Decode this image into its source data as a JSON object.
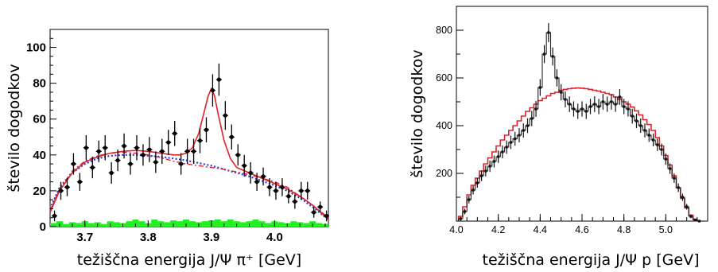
{
  "chart_data": [
    {
      "type": "scatter",
      "title": "",
      "xlabel": "težiščna energija J/Ψ π⁺ [GeV]",
      "ylabel": "število dogodkov",
      "xlim": [
        3.645,
        4.085
      ],
      "ylim": [
        0,
        110
      ],
      "xticks": [
        3.7,
        3.8,
        3.9,
        4.0
      ],
      "xtick_labels": [
        "3.7",
        "3.8",
        "3.9",
        "4.0"
      ],
      "yticks": [
        0,
        20,
        40,
        60,
        80,
        100
      ],
      "ytick_labels": [
        "0",
        "20",
        "40",
        "60",
        "80",
        "100"
      ],
      "grid": false,
      "series": [
        {
          "kind": "points_with_errors",
          "x": [
            3.652,
            3.662,
            3.672,
            3.682,
            3.692,
            3.702,
            3.712,
            3.722,
            3.732,
            3.742,
            3.752,
            3.762,
            3.772,
            3.782,
            3.792,
            3.802,
            3.812,
            3.822,
            3.832,
            3.842,
            3.852,
            3.862,
            3.872,
            3.882,
            3.892,
            3.902,
            3.912,
            3.922,
            3.932,
            3.942,
            3.952,
            3.962,
            3.972,
            3.982,
            3.992,
            4.002,
            4.012,
            4.022,
            4.032,
            4.042,
            4.052,
            4.062,
            4.072,
            4.082
          ],
          "y": [
            6,
            20,
            22,
            35,
            25,
            44,
            33,
            42,
            44,
            30,
            37,
            45,
            35,
            44,
            40,
            43,
            36,
            42,
            47,
            52,
            35,
            42,
            42,
            48,
            54,
            76,
            82,
            62,
            50,
            40,
            34,
            30,
            25,
            28,
            22,
            20,
            22,
            17,
            14,
            20,
            20,
            8,
            11,
            6
          ],
          "yerr": [
            3,
            5,
            5,
            6,
            5,
            7,
            6,
            6,
            7,
            6,
            6,
            7,
            6,
            7,
            6,
            7,
            6,
            7,
            7,
            7,
            6,
            7,
            7,
            7,
            7,
            9,
            9,
            8,
            7,
            6,
            6,
            6,
            5,
            5,
            5,
            5,
            5,
            4,
            4,
            5,
            5,
            3,
            3,
            3
          ]
        },
        {
          "kind": "fit_total",
          "color": "#e0202a",
          "x": [
            3.645,
            3.66,
            3.68,
            3.7,
            3.72,
            3.74,
            3.76,
            3.78,
            3.8,
            3.82,
            3.84,
            3.85,
            3.86,
            3.87,
            3.88,
            3.89,
            3.895,
            3.9,
            3.905,
            3.91,
            3.92,
            3.93,
            3.94,
            3.96,
            3.98,
            4.0,
            4.02,
            4.04,
            4.06,
            4.085
          ],
          "y": [
            8,
            20,
            30,
            36,
            39,
            41,
            42,
            42.5,
            42,
            41,
            40,
            40,
            41,
            44,
            52,
            66,
            73,
            77,
            73,
            64,
            48,
            38,
            33,
            30,
            27,
            24,
            21,
            17,
            12,
            4
          ]
        },
        {
          "kind": "background_blue_dotted",
          "color": "#2a3bd4",
          "x": [
            3.645,
            3.66,
            3.68,
            3.7,
            3.72,
            3.74,
            3.76,
            3.78,
            3.8,
            3.82,
            3.84,
            3.86,
            3.88,
            3.9,
            3.92,
            3.94,
            3.96,
            3.98,
            4.0,
            4.02,
            4.04,
            4.06,
            4.085
          ],
          "y": [
            10,
            22,
            30,
            35,
            38,
            39.5,
            40,
            40,
            39.5,
            39,
            38,
            37,
            35.5,
            34,
            32,
            30,
            28,
            25.5,
            23,
            20,
            16,
            11,
            4
          ]
        },
        {
          "kind": "background_red_dashed",
          "color": "#e0202a",
          "x": [
            3.645,
            3.66,
            3.68,
            3.7,
            3.72,
            3.74,
            3.76,
            3.78,
            3.8,
            3.82,
            3.84,
            3.86,
            3.88,
            3.9,
            3.92,
            3.94,
            3.96,
            3.98,
            4.0,
            4.02,
            4.04,
            4.06,
            4.085
          ],
          "y": [
            9,
            21,
            31,
            36.5,
            39.5,
            41,
            41.5,
            41,
            40,
            38.5,
            36.5,
            35,
            34,
            33,
            32,
            30.5,
            29,
            27,
            25,
            22,
            17,
            12,
            5
          ]
        },
        {
          "kind": "green_histogram",
          "color": "#22ee22",
          "x": [
            3.645,
            3.655,
            3.665,
            3.675,
            3.685,
            3.695,
            3.705,
            3.715,
            3.725,
            3.735,
            3.745,
            3.755,
            3.765,
            3.775,
            3.785,
            3.795,
            3.805,
            3.815,
            3.825,
            3.835,
            3.845,
            3.855,
            3.865,
            3.875,
            3.885,
            3.895,
            3.905,
            3.915,
            3.925,
            3.935,
            3.945,
            3.955,
            3.965,
            3.975,
            3.985,
            3.995,
            4.005,
            4.015,
            4.025,
            4.035,
            4.045,
            4.055,
            4.065,
            4.075
          ],
          "y": [
            2,
            3,
            1.5,
            2.5,
            2,
            3,
            2,
            2.5,
            1.5,
            3,
            2.5,
            2,
            3,
            4,
            3,
            2,
            4,
            3,
            2.5,
            3.5,
            3,
            4,
            3,
            2.5,
            3,
            3.5,
            4,
            3,
            4,
            3,
            2.5,
            3,
            4,
            3,
            2,
            3,
            2.5,
            2,
            3,
            2.5,
            2,
            3,
            2,
            1.5
          ]
        }
      ]
    },
    {
      "type": "line",
      "title": "",
      "xlabel": "težiščna energija J/Ψ p  [GeV]",
      "ylabel": "število dogodkov",
      "xlim": [
        4.0,
        5.2
      ],
      "ylim": [
        0,
        900
      ],
      "xticks": [
        4.0,
        4.2,
        4.4,
        4.6,
        4.8,
        5.0
      ],
      "xtick_labels": [
        "4.0",
        "4.2",
        "4.4",
        "4.6",
        "4.8",
        "5.0"
      ],
      "yticks": [
        200,
        400,
        600,
        800
      ],
      "ytick_labels": [
        "200",
        "400",
        "600",
        "800"
      ],
      "grid": false,
      "series": [
        {
          "kind": "data_histogram",
          "color": "#222222",
          "x": [
            4.02,
            4.04,
            4.06,
            4.08,
            4.1,
            4.12,
            4.14,
            4.16,
            4.18,
            4.2,
            4.22,
            4.24,
            4.26,
            4.28,
            4.3,
            4.32,
            4.34,
            4.36,
            4.38,
            4.4,
            4.42,
            4.44,
            4.46,
            4.48,
            4.5,
            4.52,
            4.54,
            4.56,
            4.58,
            4.6,
            4.62,
            4.64,
            4.66,
            4.68,
            4.7,
            4.72,
            4.74,
            4.76,
            4.78,
            4.8,
            4.82,
            4.84,
            4.86,
            4.88,
            4.9,
            4.92,
            4.94,
            4.96,
            4.98,
            5.0,
            5.02,
            5.04,
            5.06,
            5.08,
            5.1,
            5.12,
            5.14,
            5.16
          ],
          "y": [
            10,
            40,
            90,
            130,
            160,
            190,
            210,
            230,
            250,
            270,
            290,
            310,
            330,
            345,
            360,
            380,
            400,
            430,
            470,
            560,
            700,
            790,
            690,
            600,
            540,
            510,
            490,
            470,
            460,
            470,
            460,
            480,
            490,
            480,
            500,
            490,
            500,
            490,
            520,
            480,
            470,
            440,
            420,
            400,
            380,
            360,
            340,
            320,
            300,
            260,
            220,
            180,
            140,
            100,
            60,
            20,
            5,
            0
          ],
          "yerr": [
            8,
            12,
            16,
            18,
            20,
            22,
            23,
            24,
            25,
            26,
            27,
            28,
            28,
            29,
            30,
            30,
            31,
            32,
            33,
            35,
            38,
            40,
            38,
            36,
            34,
            33,
            33,
            32,
            32,
            32,
            32,
            32,
            33,
            32,
            33,
            32,
            33,
            32,
            33,
            32,
            32,
            31,
            30,
            30,
            29,
            28,
            27,
            26,
            25,
            24,
            22,
            20,
            18,
            15,
            12,
            8,
            5,
            3
          ]
        },
        {
          "kind": "model_histogram",
          "color": "#e0202a",
          "x": [
            4.02,
            4.04,
            4.06,
            4.08,
            4.1,
            4.12,
            4.14,
            4.16,
            4.18,
            4.2,
            4.22,
            4.24,
            4.26,
            4.28,
            4.3,
            4.32,
            4.34,
            4.36,
            4.38,
            4.4,
            4.42,
            4.44,
            4.46,
            4.48,
            4.5,
            4.52,
            4.54,
            4.56,
            4.58,
            4.6,
            4.62,
            4.64,
            4.66,
            4.68,
            4.7,
            4.72,
            4.74,
            4.76,
            4.78,
            4.8,
            4.82,
            4.84,
            4.86,
            4.88,
            4.9,
            4.92,
            4.94,
            4.96,
            4.98,
            5.0,
            5.02,
            5.04,
            5.06,
            5.08,
            5.1,
            5.12,
            5.14,
            5.16
          ],
          "y": [
            20,
            60,
            110,
            150,
            180,
            210,
            240,
            265,
            290,
            315,
            340,
            360,
            380,
            400,
            420,
            440,
            460,
            475,
            490,
            505,
            515,
            525,
            535,
            540,
            548,
            552,
            555,
            557,
            558,
            557,
            555,
            552,
            548,
            545,
            540,
            535,
            530,
            520,
            510,
            500,
            490,
            478,
            462,
            445,
            425,
            405,
            380,
            350,
            315,
            275,
            235,
            190,
            140,
            95,
            55,
            25,
            8,
            0
          ]
        }
      ]
    }
  ]
}
